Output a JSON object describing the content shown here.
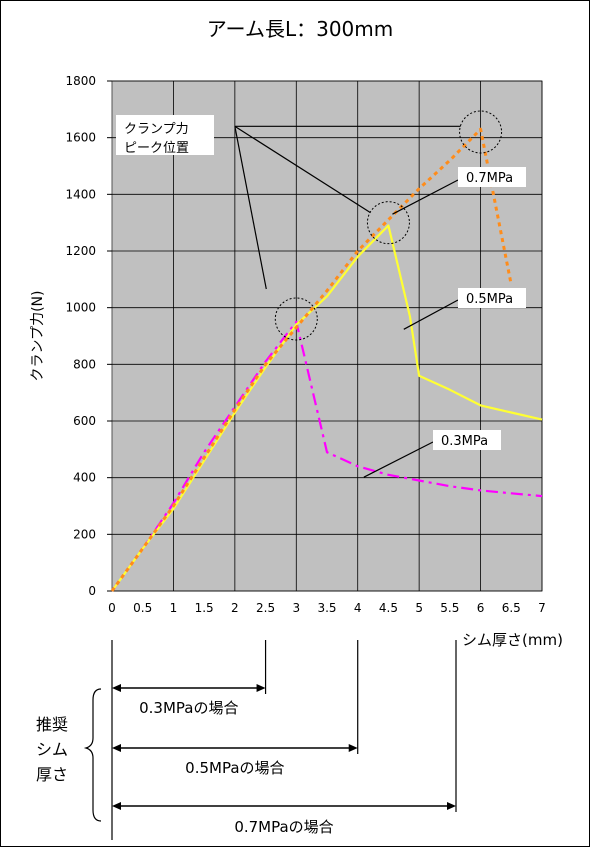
{
  "chart_data": {
    "type": "line",
    "title": "アーム長L：300mm",
    "xlabel": "シム厚さ(mm)",
    "ylabel": "クランプ力(N)",
    "xlim": [
      0,
      7
    ],
    "ylim": [
      0,
      1800
    ],
    "x_ticks": [
      "0",
      "0.5",
      "1",
      "1.5",
      "2",
      "2.5",
      "3",
      "3.5",
      "4",
      "4.5",
      "5",
      "5.5",
      "6",
      "6.5",
      "7"
    ],
    "y_ticks": [
      "0",
      "200",
      "400",
      "600",
      "800",
      "1000",
      "1200",
      "1400",
      "1600",
      "1800"
    ],
    "grid": true,
    "plot_background": "#c0c0c0",
    "series": [
      {
        "name": "0.3MPa",
        "color": "#ff00ff",
        "dash": "dash-dot",
        "points": [
          [
            0,
            0
          ],
          [
            0.5,
            150
          ],
          [
            1,
            310
          ],
          [
            1.5,
            490
          ],
          [
            2,
            650
          ],
          [
            2.5,
            810
          ],
          [
            3,
            950
          ],
          [
            3.5,
            490
          ],
          [
            4,
            440
          ],
          [
            4.5,
            410
          ],
          [
            5,
            390
          ],
          [
            5.5,
            370
          ],
          [
            6,
            355
          ],
          [
            6.5,
            345
          ],
          [
            7,
            335
          ]
        ]
      },
      {
        "name": "0.5MPa",
        "color": "#ffff33",
        "dash": "solid",
        "points": [
          [
            0,
            0
          ],
          [
            0.5,
            150
          ],
          [
            1,
            290
          ],
          [
            1.5,
            460
          ],
          [
            2,
            630
          ],
          [
            2.5,
            790
          ],
          [
            3,
            940
          ],
          [
            3.5,
            1040
          ],
          [
            4,
            1180
          ],
          [
            4.5,
            1290
          ],
          [
            4.85,
            970
          ],
          [
            5,
            760
          ],
          [
            5.5,
            710
          ],
          [
            6,
            655
          ],
          [
            6.5,
            630
          ],
          [
            7,
            605
          ]
        ]
      },
      {
        "name": "0.7MPa",
        "color": "#ff8c1a",
        "dash": "dot",
        "points": [
          [
            0,
            0
          ],
          [
            0.5,
            150
          ],
          [
            1,
            300
          ],
          [
            1.5,
            470
          ],
          [
            2,
            640
          ],
          [
            2.5,
            800
          ],
          [
            3,
            930
          ],
          [
            3.5,
            1060
          ],
          [
            4,
            1200
          ],
          [
            4.5,
            1310
          ],
          [
            5,
            1420
          ],
          [
            5.5,
            1520
          ],
          [
            6,
            1630
          ],
          [
            6.5,
            1080
          ]
        ]
      }
    ],
    "annotations": {
      "peak_label_line1": "クランプ力",
      "peak_label_line2": "ピーク位置",
      "peaks": [
        [
          3,
          960
        ],
        [
          4.5,
          1300
        ],
        [
          6,
          1620
        ]
      ],
      "label_07": "0.7MPa",
      "label_05": "0.5MPa",
      "label_03": "0.3MPa"
    },
    "recommended": {
      "brace_line1": "推奨",
      "brace_line2": "シム",
      "brace_line3": "厚さ",
      "ranges": [
        {
          "label": "0.3MPaの場合",
          "to": 2.5
        },
        {
          "label": "0.5MPaの場合",
          "to": 4
        },
        {
          "label": "0.7MPaの場合",
          "to": 5.6
        }
      ]
    }
  }
}
